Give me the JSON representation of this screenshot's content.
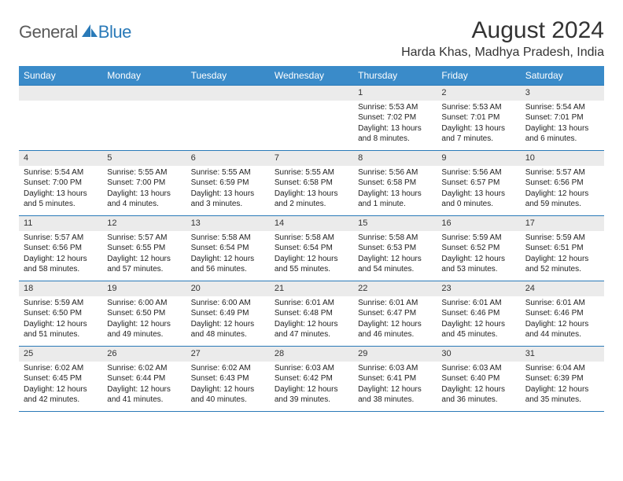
{
  "logo": {
    "text1": "General",
    "text2": "Blue"
  },
  "title": "August 2024",
  "location": "Harda Khas, Madhya Pradesh, India",
  "colors": {
    "header_bg": "#3a8bc9",
    "header_text": "#ffffff",
    "row_border": "#2a7ab8",
    "daynum_bg": "#ebebeb",
    "body_text": "#222222"
  },
  "weekdays": [
    "Sunday",
    "Monday",
    "Tuesday",
    "Wednesday",
    "Thursday",
    "Friday",
    "Saturday"
  ],
  "weeks": [
    [
      null,
      null,
      null,
      null,
      {
        "n": "1",
        "sr": "5:53 AM",
        "ss": "7:02 PM",
        "dl": "13 hours and 8 minutes."
      },
      {
        "n": "2",
        "sr": "5:53 AM",
        "ss": "7:01 PM",
        "dl": "13 hours and 7 minutes."
      },
      {
        "n": "3",
        "sr": "5:54 AM",
        "ss": "7:01 PM",
        "dl": "13 hours and 6 minutes."
      }
    ],
    [
      {
        "n": "4",
        "sr": "5:54 AM",
        "ss": "7:00 PM",
        "dl": "13 hours and 5 minutes."
      },
      {
        "n": "5",
        "sr": "5:55 AM",
        "ss": "7:00 PM",
        "dl": "13 hours and 4 minutes."
      },
      {
        "n": "6",
        "sr": "5:55 AM",
        "ss": "6:59 PM",
        "dl": "13 hours and 3 minutes."
      },
      {
        "n": "7",
        "sr": "5:55 AM",
        "ss": "6:58 PM",
        "dl": "13 hours and 2 minutes."
      },
      {
        "n": "8",
        "sr": "5:56 AM",
        "ss": "6:58 PM",
        "dl": "13 hours and 1 minute."
      },
      {
        "n": "9",
        "sr": "5:56 AM",
        "ss": "6:57 PM",
        "dl": "13 hours and 0 minutes."
      },
      {
        "n": "10",
        "sr": "5:57 AM",
        "ss": "6:56 PM",
        "dl": "12 hours and 59 minutes."
      }
    ],
    [
      {
        "n": "11",
        "sr": "5:57 AM",
        "ss": "6:56 PM",
        "dl": "12 hours and 58 minutes."
      },
      {
        "n": "12",
        "sr": "5:57 AM",
        "ss": "6:55 PM",
        "dl": "12 hours and 57 minutes."
      },
      {
        "n": "13",
        "sr": "5:58 AM",
        "ss": "6:54 PM",
        "dl": "12 hours and 56 minutes."
      },
      {
        "n": "14",
        "sr": "5:58 AM",
        "ss": "6:54 PM",
        "dl": "12 hours and 55 minutes."
      },
      {
        "n": "15",
        "sr": "5:58 AM",
        "ss": "6:53 PM",
        "dl": "12 hours and 54 minutes."
      },
      {
        "n": "16",
        "sr": "5:59 AM",
        "ss": "6:52 PM",
        "dl": "12 hours and 53 minutes."
      },
      {
        "n": "17",
        "sr": "5:59 AM",
        "ss": "6:51 PM",
        "dl": "12 hours and 52 minutes."
      }
    ],
    [
      {
        "n": "18",
        "sr": "5:59 AM",
        "ss": "6:50 PM",
        "dl": "12 hours and 51 minutes."
      },
      {
        "n": "19",
        "sr": "6:00 AM",
        "ss": "6:50 PM",
        "dl": "12 hours and 49 minutes."
      },
      {
        "n": "20",
        "sr": "6:00 AM",
        "ss": "6:49 PM",
        "dl": "12 hours and 48 minutes."
      },
      {
        "n": "21",
        "sr": "6:01 AM",
        "ss": "6:48 PM",
        "dl": "12 hours and 47 minutes."
      },
      {
        "n": "22",
        "sr": "6:01 AM",
        "ss": "6:47 PM",
        "dl": "12 hours and 46 minutes."
      },
      {
        "n": "23",
        "sr": "6:01 AM",
        "ss": "6:46 PM",
        "dl": "12 hours and 45 minutes."
      },
      {
        "n": "24",
        "sr": "6:01 AM",
        "ss": "6:46 PM",
        "dl": "12 hours and 44 minutes."
      }
    ],
    [
      {
        "n": "25",
        "sr": "6:02 AM",
        "ss": "6:45 PM",
        "dl": "12 hours and 42 minutes."
      },
      {
        "n": "26",
        "sr": "6:02 AM",
        "ss": "6:44 PM",
        "dl": "12 hours and 41 minutes."
      },
      {
        "n": "27",
        "sr": "6:02 AM",
        "ss": "6:43 PM",
        "dl": "12 hours and 40 minutes."
      },
      {
        "n": "28",
        "sr": "6:03 AM",
        "ss": "6:42 PM",
        "dl": "12 hours and 39 minutes."
      },
      {
        "n": "29",
        "sr": "6:03 AM",
        "ss": "6:41 PM",
        "dl": "12 hours and 38 minutes."
      },
      {
        "n": "30",
        "sr": "6:03 AM",
        "ss": "6:40 PM",
        "dl": "12 hours and 36 minutes."
      },
      {
        "n": "31",
        "sr": "6:04 AM",
        "ss": "6:39 PM",
        "dl": "12 hours and 35 minutes."
      }
    ]
  ]
}
